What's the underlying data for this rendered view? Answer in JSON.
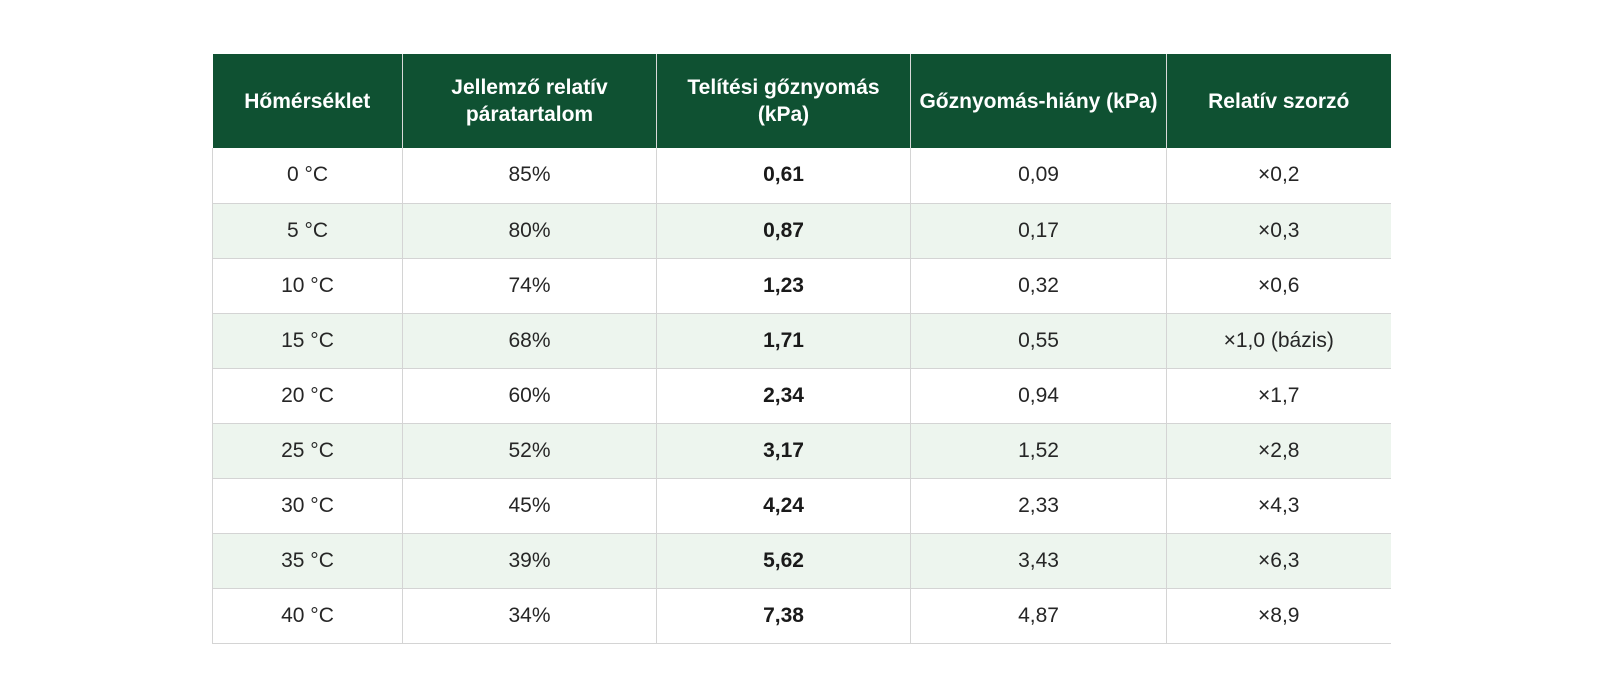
{
  "table": {
    "headers": [
      "Hőmérséklet",
      "Jellemző relatív páratartalom",
      "Telítési gőznyomás (kPa)",
      "Gőznyomás-hiány (kPa)",
      "Relatív szorzó"
    ],
    "rows": [
      [
        "0 °C",
        "85%",
        "0,61",
        "0,09",
        "×0,2"
      ],
      [
        "5 °C",
        "80%",
        "0,87",
        "0,17",
        "×0,3"
      ],
      [
        "10 °C",
        "74%",
        "1,23",
        "0,32",
        "×0,6"
      ],
      [
        "15 °C",
        "68%",
        "1,71",
        "0,55",
        "×1,0 (bázis)"
      ],
      [
        "20 °C",
        "60%",
        "2,34",
        "0,94",
        "×1,7"
      ],
      [
        "25 °C",
        "52%",
        "3,17",
        "1,52",
        "×2,8"
      ],
      [
        "30 °C",
        "45%",
        "4,24",
        "2,33",
        "×4,3"
      ],
      [
        "35 °C",
        "39%",
        "5,62",
        "3,43",
        "×6,3"
      ],
      [
        "40 °C",
        "34%",
        "7,38",
        "4,87",
        "×8,9"
      ]
    ]
  },
  "colors": {
    "header_bg": "#0f5132",
    "header_text": "#ffffff",
    "stripe": "#edf5ee"
  }
}
